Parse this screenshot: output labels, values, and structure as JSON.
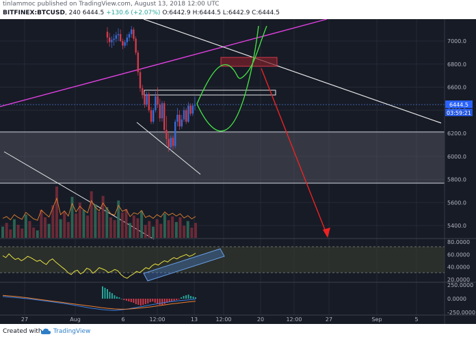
{
  "header": {
    "publisher_line": "tinlammoc published on TradingView.com, August 13, 2018 12:00 UTC",
    "symbol": "BITFINEX:BTCUSD",
    "interval": "240",
    "last": "6444.5",
    "change": "+130.6 (+2.07%)",
    "ohlc": "O:6442.9 H:6444.5 L:6442.9 C:6444.5"
  },
  "footer": {
    "created_with": "Created with",
    "brand": "TradingView"
  },
  "chart_data": {
    "type": "candlestick",
    "price_axis": {
      "ticks": [
        7000,
        6800,
        6600,
        6400,
        6200,
        6000,
        5800,
        5600,
        5400
      ],
      "labels": [
        "7000.0",
        "6800.0",
        "6600.0",
        "6400.0",
        "6200.0",
        "6000.0",
        "5800.0",
        "5600.0",
        "5400.0"
      ],
      "last_price": "6444.5",
      "countdown": "03:59:21"
    },
    "time_axis": {
      "labels": [
        "27",
        "Aug",
        "6",
        "12:00",
        "13",
        "12:00",
        "20",
        "12:00",
        "27",
        "Sep",
        "5"
      ]
    },
    "candles": [
      {
        "o": 7080,
        "h": 7120,
        "l": 6980,
        "c": 7030
      },
      {
        "o": 7030,
        "h": 7070,
        "l": 6950,
        "c": 6990
      },
      {
        "o": 6990,
        "h": 7040,
        "l": 6940,
        "c": 7010
      },
      {
        "o": 7010,
        "h": 7060,
        "l": 6960,
        "c": 7020
      },
      {
        "o": 7020,
        "h": 7080,
        "l": 6990,
        "c": 7050
      },
      {
        "o": 7050,
        "h": 7110,
        "l": 7000,
        "c": 7060
      },
      {
        "o": 7060,
        "h": 7100,
        "l": 6990,
        "c": 7000
      },
      {
        "o": 7000,
        "h": 7020,
        "l": 6930,
        "c": 6960
      },
      {
        "o": 6960,
        "h": 7010,
        "l": 6940,
        "c": 6990
      },
      {
        "o": 6990,
        "h": 7060,
        "l": 6960,
        "c": 7030
      },
      {
        "o": 7030,
        "h": 7080,
        "l": 7000,
        "c": 7060
      },
      {
        "o": 7060,
        "h": 7130,
        "l": 7030,
        "c": 7100
      },
      {
        "o": 7100,
        "h": 7120,
        "l": 7000,
        "c": 7020
      },
      {
        "o": 7020,
        "h": 7040,
        "l": 6880,
        "c": 6900
      },
      {
        "o": 6900,
        "h": 6920,
        "l": 6700,
        "c": 6730
      },
      {
        "o": 6730,
        "h": 6760,
        "l": 6560,
        "c": 6590
      },
      {
        "o": 6590,
        "h": 6620,
        "l": 6500,
        "c": 6530
      },
      {
        "o": 6530,
        "h": 6560,
        "l": 6420,
        "c": 6450
      },
      {
        "o": 6450,
        "h": 6560,
        "l": 6430,
        "c": 6540
      },
      {
        "o": 6540,
        "h": 6560,
        "l": 6380,
        "c": 6400
      },
      {
        "o": 6400,
        "h": 6430,
        "l": 6280,
        "c": 6300
      },
      {
        "o": 6300,
        "h": 6420,
        "l": 6280,
        "c": 6400
      },
      {
        "o": 6400,
        "h": 6560,
        "l": 6380,
        "c": 6520
      },
      {
        "o": 6520,
        "h": 6600,
        "l": 6420,
        "c": 6450
      },
      {
        "o": 6450,
        "h": 6500,
        "l": 6300,
        "c": 6330
      },
      {
        "o": 6330,
        "h": 6480,
        "l": 6300,
        "c": 6460
      },
      {
        "o": 6460,
        "h": 6480,
        "l": 6200,
        "c": 6230
      },
      {
        "o": 6230,
        "h": 6350,
        "l": 6100,
        "c": 6150
      },
      {
        "o": 6150,
        "h": 6200,
        "l": 6040,
        "c": 6080
      },
      {
        "o": 6080,
        "h": 6180,
        "l": 6050,
        "c": 6160
      },
      {
        "o": 6160,
        "h": 6180,
        "l": 6060,
        "c": 6090
      },
      {
        "o": 6090,
        "h": 6320,
        "l": 6070,
        "c": 6300
      },
      {
        "o": 6300,
        "h": 6420,
        "l": 6260,
        "c": 6360
      },
      {
        "o": 6360,
        "h": 6400,
        "l": 6230,
        "c": 6260
      },
      {
        "o": 6260,
        "h": 6360,
        "l": 6240,
        "c": 6320
      },
      {
        "o": 6320,
        "h": 6430,
        "l": 6300,
        "c": 6400
      },
      {
        "o": 6400,
        "h": 6420,
        "l": 6280,
        "c": 6300
      },
      {
        "o": 6300,
        "h": 6470,
        "l": 6290,
        "c": 6440
      },
      {
        "o": 6440,
        "h": 6460,
        "l": 6350,
        "c": 6370
      },
      {
        "o": 6370,
        "h": 6460,
        "l": 6350,
        "c": 6440
      },
      {
        "o": 6440,
        "h": 6520,
        "l": 6400,
        "c": 6445
      }
    ],
    "volume_bars": [
      12,
      16,
      9,
      20,
      14,
      10,
      25,
      18,
      11,
      8,
      30,
      22,
      15,
      35,
      55,
      20,
      28,
      17,
      44,
      26,
      38,
      30,
      24,
      50,
      36,
      28,
      45,
      33,
      22,
      19,
      40,
      27,
      31,
      16,
      24,
      21,
      29,
      14,
      18,
      12,
      20,
      15,
      26,
      19,
      23,
      17,
      22,
      13,
      18,
      11,
      16
    ],
    "rsi": {
      "ticks": [
        80,
        60,
        40,
        20
      ],
      "labels": [
        "80.0000",
        "60.0000",
        "40.0000",
        "20.0000"
      ],
      "band": [
        70,
        30
      ],
      "values": [
        58,
        55,
        61,
        56,
        52,
        54,
        50,
        53,
        57,
        55,
        52,
        49,
        51,
        47,
        44,
        50,
        53,
        48,
        44,
        40,
        36,
        31,
        28,
        33,
        35,
        29,
        32,
        38,
        36,
        30,
        34,
        39,
        37,
        35,
        31,
        33,
        36,
        34,
        28,
        24,
        22,
        26,
        29,
        33,
        31,
        35,
        39,
        37,
        42,
        45,
        43,
        47,
        50,
        48,
        52,
        55,
        53,
        56,
        58,
        60,
        57,
        59,
        62
      ]
    },
    "macd": {
      "ticks": [
        250,
        0,
        -250
      ],
      "labels": [
        "250.0000",
        "0.0000",
        "-250.0000"
      ],
      "histogram": [
        18,
        16,
        14,
        10,
        8,
        5,
        3,
        2,
        0,
        -2,
        -3,
        -4,
        -5,
        -6,
        -8,
        -9,
        -10,
        -9,
        -8,
        -7,
        -5,
        -4,
        -6,
        -8,
        -9,
        -10,
        -8,
        -6,
        -5,
        -4,
        -3,
        -2,
        -1,
        2,
        4,
        5,
        6,
        4,
        3,
        2
      ],
      "macd_line": [
        40,
        30,
        20,
        10,
        0,
        -15,
        -30,
        -45,
        -60,
        -75,
        -90,
        -110,
        -130,
        -150,
        -170,
        -185,
        -200,
        -210,
        -215,
        -205,
        -190,
        -170,
        -150,
        -130,
        -110,
        -90,
        -70,
        -55,
        -40,
        -30,
        -20,
        -10
      ],
      "signal_line": [
        60,
        50,
        40,
        28,
        15,
        0,
        -15,
        -30,
        -45,
        -60,
        -75,
        -90,
        -105,
        -120,
        -135,
        -150,
        -165,
        -178,
        -188,
        -192,
        -190,
        -183,
        -172,
        -160,
        -146,
        -130,
        -114,
        -98,
        -84,
        -70,
        -58,
        -46
      ]
    }
  }
}
